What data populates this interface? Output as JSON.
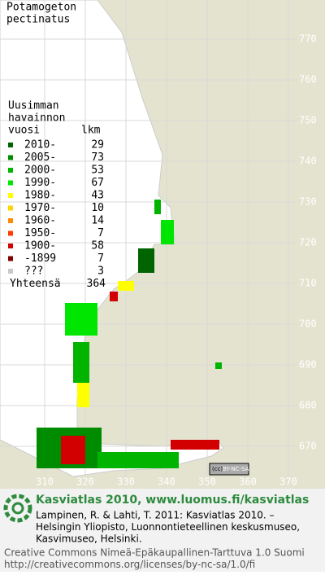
{
  "title_lines": [
    "Potamogeton",
    "pectinatus"
  ],
  "legend": {
    "header_lines": [
      "Uusimman",
      "havainnon",
      "vuosi"
    ],
    "count_header": "lkm",
    "items": [
      {
        "label": "2010-",
        "count": 29,
        "color": "#006400"
      },
      {
        "label": "2005-",
        "count": 73,
        "color": "#008c00"
      },
      {
        "label": "2000-",
        "count": 53,
        "color": "#00b400"
      },
      {
        "label": "1990-",
        "count": 67,
        "color": "#00e600"
      },
      {
        "label": "1980-",
        "count": 43,
        "color": "#ffff00"
      },
      {
        "label": "1970-",
        "count": 10,
        "color": "#ffd200"
      },
      {
        "label": "1960-",
        "count": 14,
        "color": "#ff8c00"
      },
      {
        "label": "1950-",
        "count": 7,
        "color": "#ff3c00"
      },
      {
        "label": "1900-",
        "count": 58,
        "color": "#d20000"
      },
      {
        "label": "-1899",
        "count": 7,
        "color": "#820000"
      },
      {
        "label": "???",
        "count": 3,
        "color": "#c8c8c8"
      }
    ],
    "total_label": "Yhteensä",
    "total": 364
  },
  "y_ticks": [
    770,
    760,
    750,
    740,
    730,
    720,
    710,
    700,
    690,
    680,
    670
  ],
  "x_ticks": [
    310,
    320,
    330,
    340,
    350,
    360,
    370
  ],
  "badge": {
    "cc": "(cc)",
    "text": "BY-NC-SA"
  },
  "footer": {
    "heading": "Kasviatlas 2010, www.luomus.fi/kasviatlas",
    "citation": [
      "Lampinen, R. & Lahti, T. 2011: Kasviatlas 2010. –",
      "Helsingin Yliopisto, Luonnontieteellinen keskusmuseo,",
      "Kasvimuseo, Helsinki."
    ],
    "license": [
      "Creative Commons Nimeä-Epäkaupallinen-Tarttuva 1.0 Suomi",
      "http://creativecommons.org/licenses/by-nc-sa/1.0/fi"
    ]
  }
}
